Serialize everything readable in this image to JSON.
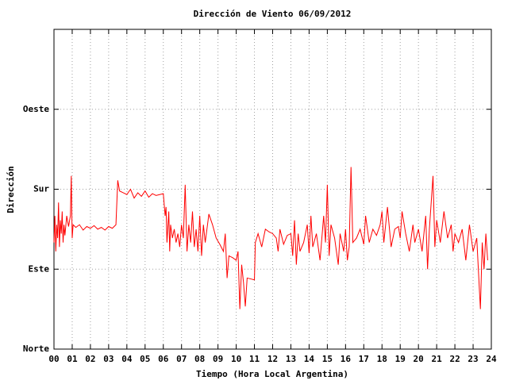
{
  "chart_data": {
    "type": "line",
    "title": "Dirección de Viento 06/09/2012",
    "xlabel": "Tiempo (Hora Local Argentina)",
    "ylabel": "Dirección",
    "color": "#ff0000",
    "grid": true,
    "xlim": [
      0,
      24
    ],
    "ylim": [
      0,
      360
    ],
    "xticks": [
      {
        "value": 0,
        "label": "00"
      },
      {
        "value": 1,
        "label": "01"
      },
      {
        "value": 2,
        "label": "02"
      },
      {
        "value": 3,
        "label": "03"
      },
      {
        "value": 4,
        "label": "04"
      },
      {
        "value": 5,
        "label": "05"
      },
      {
        "value": 6,
        "label": "06"
      },
      {
        "value": 7,
        "label": "07"
      },
      {
        "value": 8,
        "label": "08"
      },
      {
        "value": 9,
        "label": "09"
      },
      {
        "value": 10,
        "label": "10"
      },
      {
        "value": 11,
        "label": "11"
      },
      {
        "value": 12,
        "label": "12"
      },
      {
        "value": 13,
        "label": "13"
      },
      {
        "value": 14,
        "label": "14"
      },
      {
        "value": 15,
        "label": "15"
      },
      {
        "value": 16,
        "label": "16"
      },
      {
        "value": 17,
        "label": "17"
      },
      {
        "value": 18,
        "label": "18"
      },
      {
        "value": 19,
        "label": "19"
      },
      {
        "value": 20,
        "label": "20"
      },
      {
        "value": 21,
        "label": "21"
      },
      {
        "value": 22,
        "label": "22"
      },
      {
        "value": 23,
        "label": "23"
      },
      {
        "value": 24,
        "label": "24"
      }
    ],
    "yticks": [
      {
        "value": 0,
        "label": "Norte"
      },
      {
        "value": 90,
        "label": "Este"
      },
      {
        "value": 180,
        "label": "Sur"
      },
      {
        "value": 270,
        "label": "Oeste"
      }
    ],
    "x": [
      0.0,
      0.05,
      0.1,
      0.15,
      0.2,
      0.25,
      0.3,
      0.35,
      0.4,
      0.45,
      0.5,
      0.55,
      0.6,
      0.7,
      0.8,
      0.9,
      0.95,
      1.0,
      1.05,
      1.2,
      1.4,
      1.6,
      1.8,
      2.0,
      2.2,
      2.4,
      2.6,
      2.8,
      3.0,
      3.2,
      3.4,
      3.5,
      3.6,
      3.8,
      4.0,
      4.2,
      4.4,
      4.6,
      4.8,
      5.0,
      5.2,
      5.4,
      5.6,
      5.8,
      6.0,
      6.1,
      6.15,
      6.2,
      6.3,
      6.35,
      6.4,
      6.5,
      6.6,
      6.7,
      6.8,
      6.9,
      7.0,
      7.1,
      7.2,
      7.3,
      7.4,
      7.5,
      7.6,
      7.7,
      7.8,
      7.9,
      8.0,
      8.1,
      8.2,
      8.3,
      8.5,
      8.7,
      8.9,
      9.1,
      9.3,
      9.4,
      9.5,
      9.6,
      9.8,
      10.0,
      10.1,
      10.2,
      10.3,
      10.4,
      10.5,
      10.6,
      10.8,
      11.0,
      11.05,
      11.2,
      11.4,
      11.6,
      11.8,
      12.0,
      12.2,
      12.3,
      12.4,
      12.6,
      12.8,
      13.0,
      13.1,
      13.2,
      13.3,
      13.4,
      13.5,
      13.7,
      13.9,
      14.0,
      14.1,
      14.2,
      14.4,
      14.6,
      14.8,
      14.9,
      15.0,
      15.1,
      15.2,
      15.4,
      15.6,
      15.7,
      15.9,
      16.0,
      16.1,
      16.2,
      16.3,
      16.4,
      16.6,
      16.8,
      17.0,
      17.1,
      17.3,
      17.5,
      17.7,
      17.9,
      18.0,
      18.1,
      18.3,
      18.5,
      18.7,
      18.9,
      19.0,
      19.1,
      19.3,
      19.5,
      19.7,
      19.8,
      20.0,
      20.2,
      20.4,
      20.5,
      20.6,
      20.8,
      20.9,
      21.0,
      21.2,
      21.4,
      21.6,
      21.8,
      21.9,
      22.0,
      22.2,
      22.4,
      22.6,
      22.8,
      23.0,
      23.2,
      23.3,
      23.4,
      23.5,
      23.6,
      23.7,
      23.8
    ],
    "values": [
      120,
      150,
      110,
      140,
      125,
      165,
      115,
      145,
      130,
      155,
      120,
      140,
      128,
      150,
      138,
      150,
      195,
      125,
      140,
      137,
      140,
      134,
      138,
      136,
      139,
      135,
      137,
      134,
      138,
      136,
      140,
      190,
      178,
      176,
      174,
      180,
      170,
      176,
      172,
      178,
      171,
      175,
      173,
      174,
      175,
      150,
      160,
      120,
      155,
      110,
      140,
      125,
      135,
      120,
      130,
      115,
      140,
      125,
      185,
      110,
      140,
      120,
      155,
      115,
      135,
      110,
      150,
      105,
      140,
      120,
      152,
      140,
      125,
      118,
      110,
      130,
      80,
      105,
      103,
      100,
      110,
      45,
      95,
      75,
      48,
      80,
      79,
      78,
      120,
      130,
      115,
      135,
      132,
      130,
      125,
      110,
      135,
      118,
      128,
      130,
      105,
      145,
      95,
      130,
      110,
      120,
      140,
      108,
      150,
      115,
      130,
      100,
      150,
      120,
      185,
      105,
      140,
      125,
      95,
      130,
      110,
      135,
      100,
      115,
      205,
      120,
      125,
      135,
      118,
      150,
      120,
      135,
      128,
      140,
      155,
      120,
      160,
      115,
      135,
      138,
      125,
      155,
      130,
      110,
      140,
      120,
      135,
      110,
      150,
      90,
      135,
      195,
      115,
      145,
      120,
      155,
      125,
      140,
      110,
      130,
      120,
      135,
      100,
      140,
      110,
      125,
      85,
      45,
      120,
      90,
      130,
      100
    ]
  }
}
